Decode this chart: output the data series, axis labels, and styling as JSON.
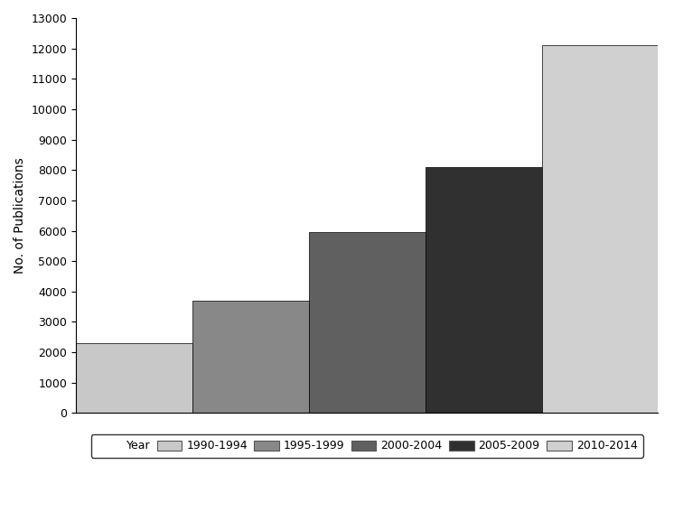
{
  "categories": [
    "1990-1994",
    "1995-1999",
    "2000-2004",
    "2005-2009",
    "2010-2014"
  ],
  "values": [
    2300,
    3700,
    5950,
    8100,
    12100
  ],
  "bar_colors": [
    "#c8c8c8",
    "#888888",
    "#606060",
    "#303030",
    "#d0d0d0"
  ],
  "ylabel": "No. of Publications",
  "ylim": [
    0,
    13000
  ],
  "yticks": [
    0,
    1000,
    2000,
    3000,
    4000,
    5000,
    6000,
    7000,
    8000,
    9000,
    10000,
    11000,
    12000,
    13000
  ],
  "legend_label": "Year",
  "background_color": "#ffffff",
  "bar_edge_color": "#000000",
  "bar_width": 1.0
}
